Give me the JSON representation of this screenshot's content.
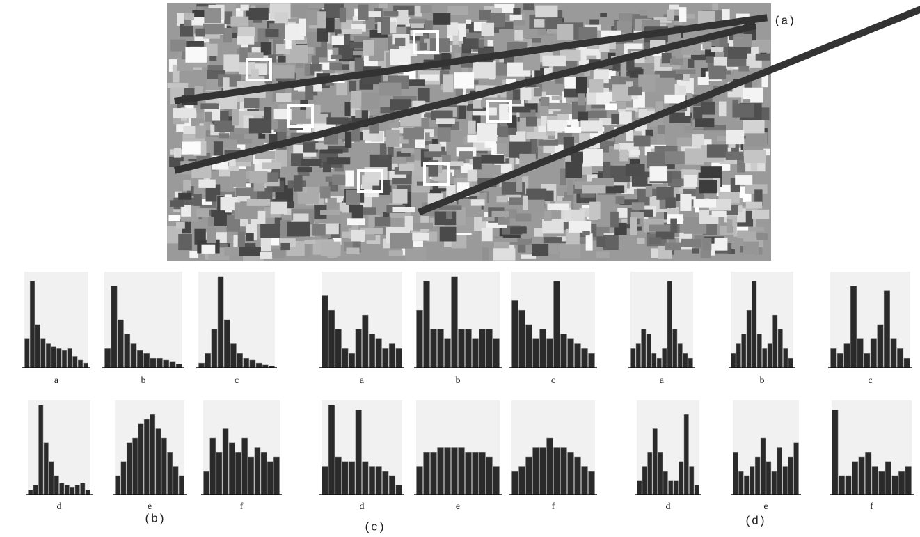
{
  "figure": {
    "image_label": "(a)",
    "ylim": [
      0,
      100
    ],
    "panels": [
      {
        "label": "(b)",
        "histograms": [
          {
            "label": "a",
            "values": [
              30,
              90,
              45,
              30,
              25,
              22,
              20,
              18,
              20,
              12,
              8,
              5
            ]
          },
          {
            "label": "b",
            "values": [
              20,
              85,
              50,
              35,
              25,
              18,
              15,
              10,
              10,
              8,
              6,
              4
            ]
          },
          {
            "label": "c",
            "values": [
              5,
              15,
              40,
              95,
              50,
              25,
              15,
              10,
              8,
              5,
              3,
              2
            ]
          },
          {
            "label": "d",
            "values": [
              5,
              10,
              95,
              55,
              35,
              20,
              12,
              10,
              8,
              10,
              12,
              5
            ]
          },
          {
            "label": "e",
            "values": [
              20,
              35,
              55,
              60,
              75,
              80,
              85,
              70,
              60,
              45,
              30,
              20
            ]
          },
          {
            "label": "f",
            "values": [
              25,
              60,
              45,
              70,
              55,
              45,
              60,
              40,
              50,
              45,
              35,
              40
            ]
          }
        ]
      },
      {
        "label": "(c)",
        "histograms": [
          {
            "label": "a",
            "values": [
              75,
              60,
              40,
              20,
              15,
              40,
              55,
              35,
              30,
              20,
              25,
              20
            ]
          },
          {
            "label": "b",
            "values": [
              60,
              90,
              40,
              40,
              30,
              95,
              40,
              40,
              30,
              40,
              40,
              30
            ]
          },
          {
            "label": "c",
            "values": [
              70,
              60,
              45,
              30,
              40,
              30,
              90,
              35,
              30,
              25,
              20,
              15
            ]
          },
          {
            "label": "d",
            "values": [
              30,
              95,
              40,
              35,
              35,
              90,
              35,
              30,
              30,
              25,
              20,
              10
            ]
          },
          {
            "label": "e",
            "values": [
              30,
              45,
              45,
              50,
              50,
              50,
              50,
              45,
              45,
              45,
              40,
              30
            ]
          },
          {
            "label": "f",
            "values": [
              25,
              30,
              40,
              50,
              50,
              60,
              50,
              50,
              45,
              40,
              30,
              25
            ]
          }
        ]
      },
      {
        "label": "(d)",
        "histograms": [
          {
            "label": "a",
            "values": [
              20,
              25,
              40,
              35,
              15,
              10,
              20,
              90,
              40,
              25,
              15,
              10
            ]
          },
          {
            "label": "b",
            "values": [
              15,
              25,
              35,
              60,
              90,
              35,
              20,
              25,
              55,
              40,
              20,
              10
            ]
          },
          {
            "label": "c",
            "values": [
              20,
              15,
              25,
              85,
              30,
              15,
              30,
              45,
              80,
              30,
              20,
              10
            ]
          },
          {
            "label": "d",
            "values": [
              15,
              30,
              45,
              70,
              45,
              25,
              15,
              15,
              35,
              85,
              30,
              10
            ]
          },
          {
            "label": "e",
            "values": [
              45,
              25,
              20,
              30,
              40,
              60,
              35,
              25,
              50,
              30,
              40,
              55
            ]
          },
          {
            "label": "f",
            "values": [
              90,
              20,
              20,
              35,
              40,
              45,
              30,
              25,
              35,
              20,
              25,
              30
            ]
          }
        ]
      }
    ]
  }
}
